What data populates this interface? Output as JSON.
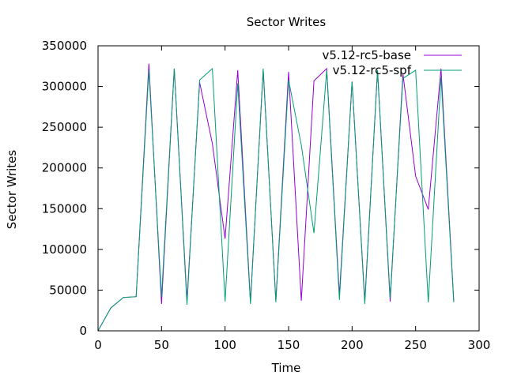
{
  "chart_data": {
    "type": "line",
    "title": "Sector Writes",
    "xlabel": "Time",
    "ylabel": "Sector Writes",
    "xlim": [
      0,
      300
    ],
    "ylim": [
      0,
      350000
    ],
    "xticks": [
      0,
      50,
      100,
      150,
      200,
      250,
      300
    ],
    "yticks": [
      0,
      50000,
      100000,
      150000,
      200000,
      250000,
      300000,
      350000
    ],
    "grid": false,
    "legend_position": "top-right",
    "series": [
      {
        "name": "v5.12-rc5-base",
        "color": "#9400d3",
        "points": [
          [
            0,
            0
          ],
          [
            10,
            28000
          ],
          [
            20,
            41000
          ],
          [
            30,
            42000
          ],
          [
            40,
            328000
          ],
          [
            50,
            33000
          ],
          [
            60,
            322000
          ],
          [
            70,
            37000
          ],
          [
            80,
            305000
          ],
          [
            90,
            230000
          ],
          [
            100,
            113000
          ],
          [
            110,
            320000
          ],
          [
            120,
            36000
          ],
          [
            130,
            320000
          ],
          [
            140,
            37000
          ],
          [
            150,
            318000
          ],
          [
            160,
            37000
          ],
          [
            170,
            307000
          ],
          [
            180,
            322000
          ],
          [
            190,
            44000
          ],
          [
            200,
            306000
          ],
          [
            210,
            36000
          ],
          [
            220,
            320000
          ],
          [
            230,
            36000
          ],
          [
            240,
            316000
          ],
          [
            250,
            190000
          ],
          [
            260,
            149000
          ],
          [
            270,
            322000
          ],
          [
            280,
            37000
          ]
        ]
      },
      {
        "name": "v5.12-rc5-spf",
        "color": "#009e73",
        "points": [
          [
            0,
            0
          ],
          [
            10,
            28000
          ],
          [
            20,
            41000
          ],
          [
            30,
            42000
          ],
          [
            40,
            320000
          ],
          [
            50,
            42000
          ],
          [
            60,
            322000
          ],
          [
            70,
            32000
          ],
          [
            80,
            308000
          ],
          [
            90,
            322000
          ],
          [
            100,
            36000
          ],
          [
            110,
            304000
          ],
          [
            120,
            33000
          ],
          [
            130,
            322000
          ],
          [
            140,
            35000
          ],
          [
            150,
            308000
          ],
          [
            160,
            228000
          ],
          [
            170,
            120000
          ],
          [
            180,
            320000
          ],
          [
            190,
            38000
          ],
          [
            200,
            306000
          ],
          [
            210,
            33000
          ],
          [
            220,
            320000
          ],
          [
            230,
            40000
          ],
          [
            240,
            310000
          ],
          [
            250,
            320000
          ],
          [
            260,
            35000
          ],
          [
            270,
            312000
          ],
          [
            280,
            35000
          ]
        ]
      }
    ]
  }
}
